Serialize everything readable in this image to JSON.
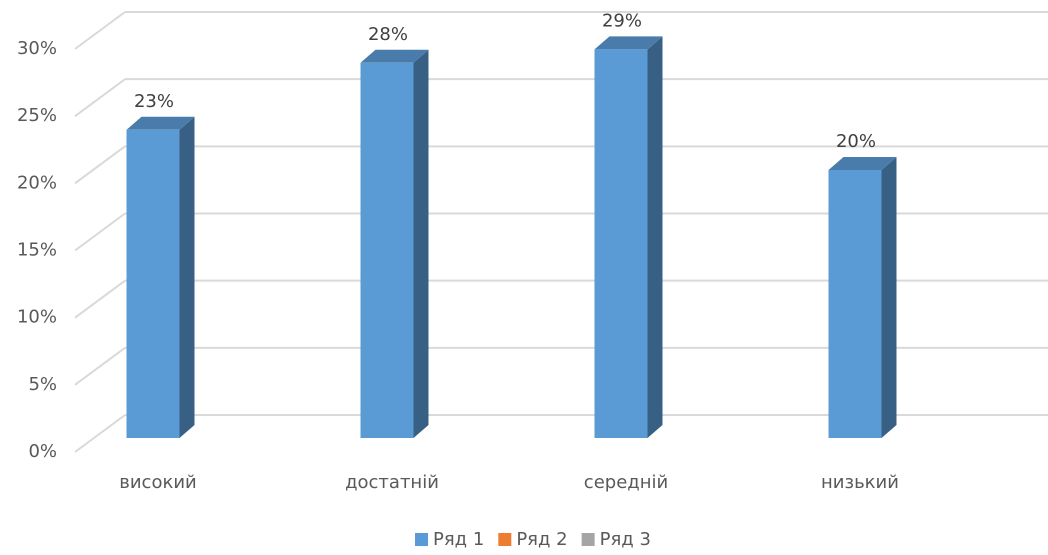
{
  "chart_data": {
    "type": "bar3d",
    "categories": [
      "високий",
      "достатній",
      "середній",
      "низький"
    ],
    "series": [
      {
        "name": "Ряд 1",
        "color": "#5b9bd5",
        "values": [
          23,
          28,
          29,
          20
        ],
        "value_labels": [
          "23%",
          "28%",
          "29%",
          "20%"
        ]
      },
      {
        "name": "Ряд 2",
        "color": "#ed7d31",
        "values": [
          null,
          null,
          null,
          null
        ]
      },
      {
        "name": "Ряд 3",
        "color": "#a5a5a5",
        "values": [
          null,
          null,
          null,
          null
        ]
      }
    ],
    "ylim": [
      0,
      30
    ],
    "yticks": [
      {
        "value": 0,
        "label": "0%"
      },
      {
        "value": 5,
        "label": "5%"
      },
      {
        "value": 10,
        "label": "10%"
      },
      {
        "value": 15,
        "label": "15%"
      },
      {
        "value": 20,
        "label": "20%"
      },
      {
        "value": 25,
        "label": "25%"
      },
      {
        "value": 30,
        "label": "30%"
      }
    ],
    "grid": true,
    "legend": "bottom"
  }
}
